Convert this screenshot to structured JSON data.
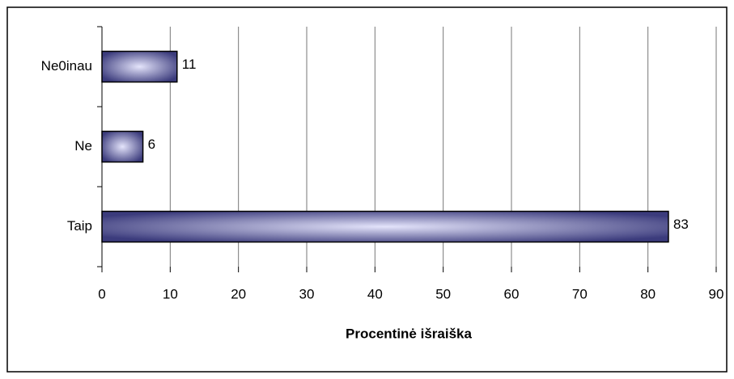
{
  "chart_data": {
    "type": "bar",
    "orientation": "horizontal",
    "x_label": "Procentinė išraiška",
    "categories": [
      "Taip",
      "Ne",
      "Ne0inau"
    ],
    "values": [
      83,
      6,
      11
    ],
    "color": "#3b3b7c",
    "xlim": [
      0,
      90
    ],
    "xticks": [
      0,
      10,
      20,
      30,
      40,
      50,
      60,
      70,
      80,
      90
    ],
    "grid": true
  }
}
